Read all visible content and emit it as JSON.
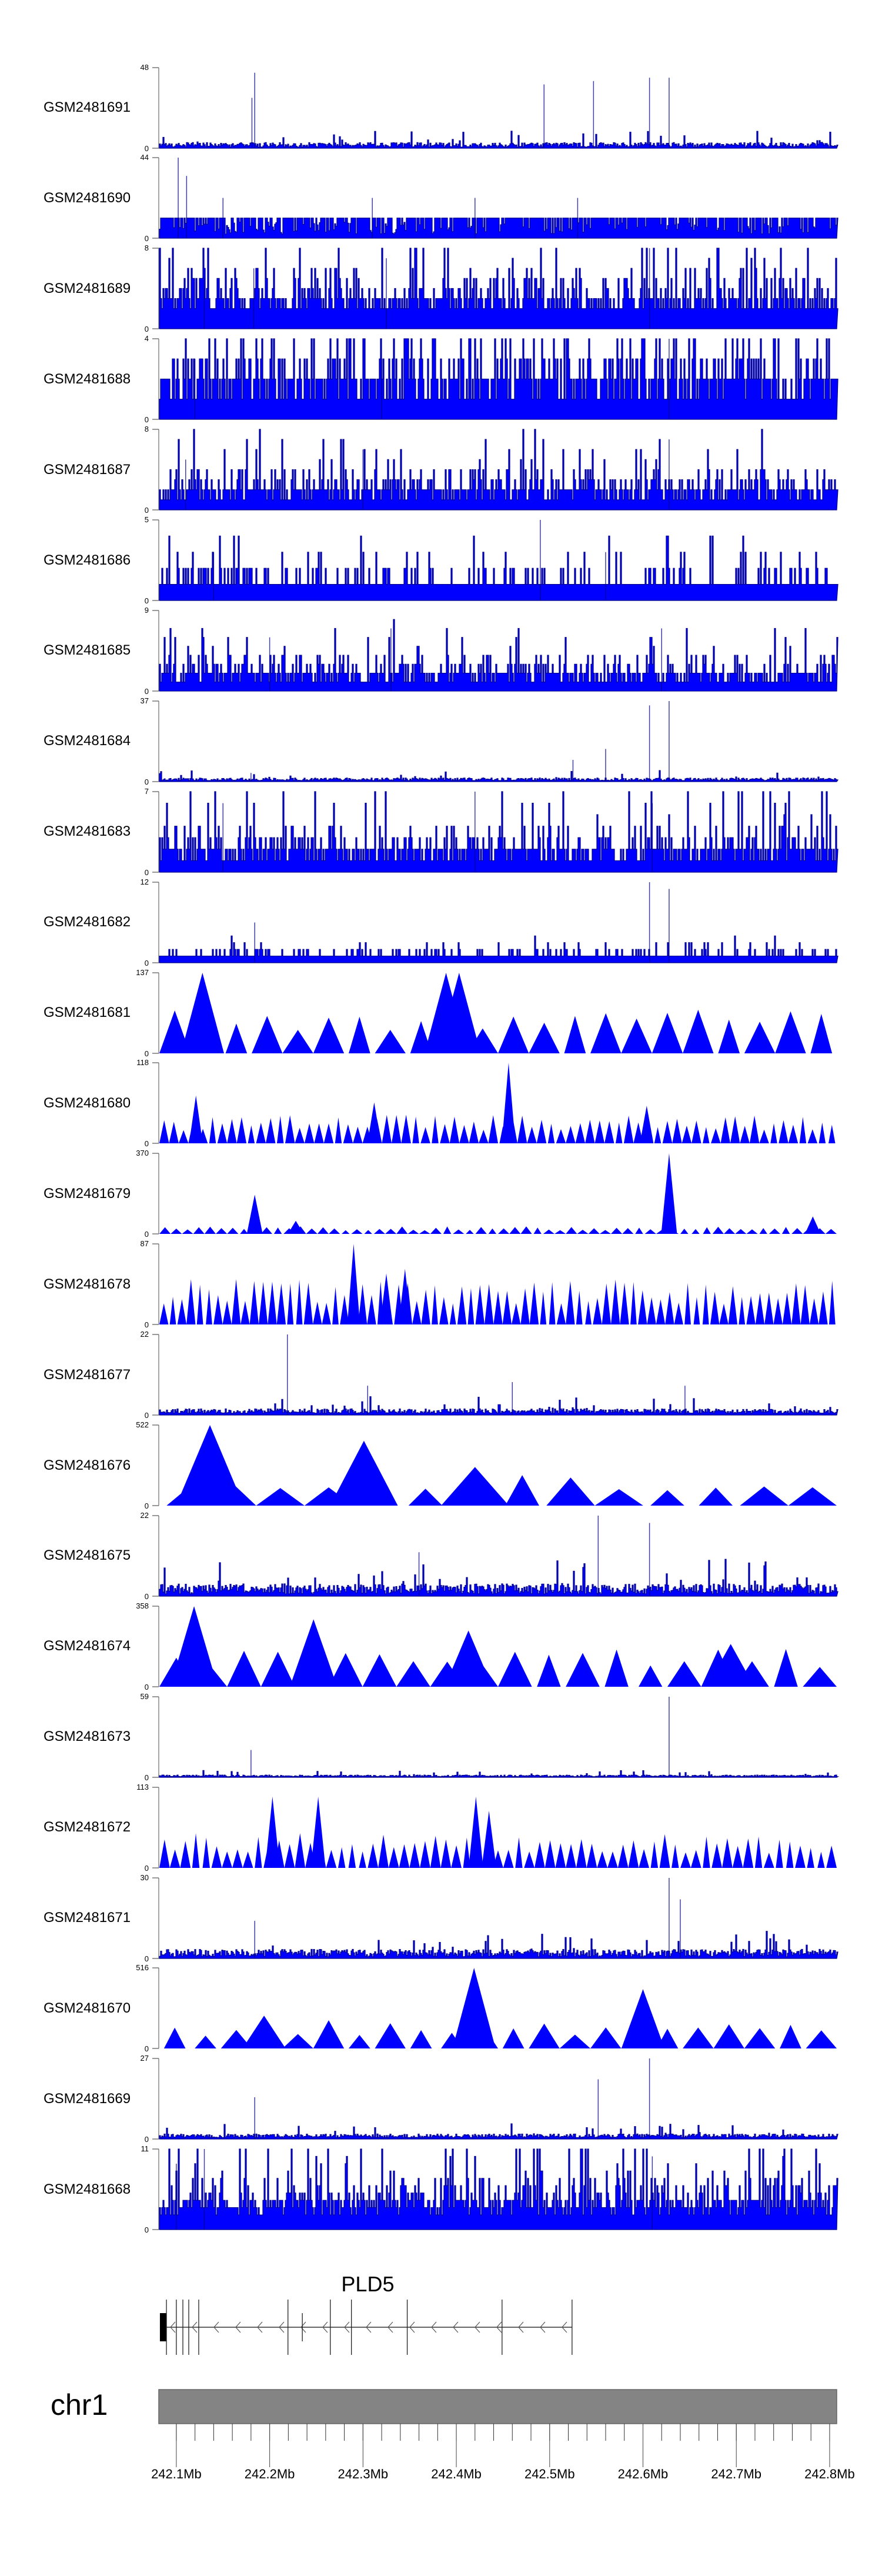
{
  "chart_data": {
    "type": "area",
    "title": "",
    "region": {
      "chromosome": "chr1",
      "start_mb": 242.0818,
      "end_mb": 242.8076
    },
    "colors": {
      "histogram": "#00008B",
      "histogram_fill": "#0000FF",
      "polygon": "#0000FF",
      "axis": "#888888",
      "ideogram": "#848484"
    },
    "tracks": [
      {
        "name": "GSM2481691",
        "ymax": 48,
        "style": "histogram",
        "typical": 2,
        "peaks": [
          [
            242.184,
            45
          ],
          [
            242.181,
            30
          ],
          [
            242.494,
            38
          ],
          [
            242.547,
            40
          ],
          [
            242.607,
            42
          ],
          [
            242.628,
            42
          ]
        ]
      },
      {
        "name": "GSM2481690",
        "ymax": 44,
        "style": "mixed",
        "typical": 11,
        "peaks": [
          [
            242.102,
            44
          ],
          [
            242.111,
            34
          ],
          [
            242.15,
            22
          ],
          [
            242.31,
            22
          ],
          [
            242.42,
            22
          ],
          [
            242.53,
            22
          ]
        ]
      },
      {
        "name": "GSM2481689",
        "ymax": 8,
        "style": "histogram",
        "typical": 3,
        "peaks": [
          [
            242.13,
            5
          ],
          [
            242.183,
            6
          ],
          [
            242.325,
            7
          ],
          [
            242.607,
            8
          ]
        ]
      },
      {
        "name": "GSM2481688",
        "ymax": 4,
        "style": "histogram",
        "typical": 2,
        "peaks": [
          [
            242.12,
            3
          ],
          [
            242.32,
            3
          ],
          [
            242.628,
            4
          ]
        ]
      },
      {
        "name": "GSM2481687",
        "ymax": 8,
        "style": "histogram",
        "typical": 2,
        "peaks": [
          [
            242.11,
            5
          ],
          [
            242.3,
            6
          ],
          [
            242.628,
            7
          ]
        ]
      },
      {
        "name": "GSM2481686",
        "ymax": 5,
        "style": "histogram",
        "typical": 1,
        "peaks": [
          [
            242.14,
            3
          ],
          [
            242.49,
            5
          ],
          [
            242.56,
            3
          ]
        ]
      },
      {
        "name": "GSM2481685",
        "ymax": 9,
        "style": "histogram",
        "typical": 2,
        "peaks": [
          [
            242.2,
            6
          ],
          [
            242.33,
            7
          ],
          [
            242.62,
            7
          ]
        ]
      },
      {
        "name": "GSM2481684",
        "ymax": 37,
        "style": "histogram",
        "typical": 1,
        "peaks": [
          [
            242.18,
            4
          ],
          [
            242.525,
            10
          ],
          [
            242.56,
            15
          ],
          [
            242.607,
            35
          ],
          [
            242.628,
            37
          ]
        ]
      },
      {
        "name": "GSM2481683",
        "ymax": 7,
        "style": "histogram",
        "typical": 2,
        "peaks": [
          [
            242.15,
            6
          ],
          [
            242.42,
            7
          ],
          [
            242.61,
            6
          ]
        ]
      },
      {
        "name": "GSM2481682",
        "ymax": 12,
        "style": "histogram",
        "typical": 1,
        "peaks": [
          [
            242.184,
            6
          ],
          [
            242.607,
            12
          ],
          [
            242.628,
            11
          ]
        ]
      },
      {
        "name": "GSM2481681",
        "ymax": 137,
        "style": "polygon",
        "typical": 55,
        "count": 22,
        "peaks": [
          [
            242.128,
            137
          ],
          [
            242.389,
            137
          ],
          [
            242.403,
            137
          ]
        ]
      },
      {
        "name": "GSM2481680",
        "ymax": 118,
        "style": "polygon",
        "typical": 30,
        "count": 70,
        "peaks": [
          [
            242.121,
            70
          ],
          [
            242.312,
            60
          ],
          [
            242.456,
            118
          ],
          [
            242.604,
            55
          ]
        ]
      },
      {
        "name": "GSM2481679",
        "ymax": 370,
        "style": "polygon",
        "typical": 25,
        "count": 60,
        "peaks": [
          [
            242.184,
            180
          ],
          [
            242.228,
            60
          ],
          [
            242.628,
            370
          ],
          [
            242.782,
            80
          ]
        ]
      },
      {
        "name": "GSM2481678",
        "ymax": 87,
        "style": "polygon",
        "typical": 35,
        "count": 75,
        "peaks": [
          [
            242.29,
            87
          ],
          [
            242.325,
            55
          ],
          [
            242.345,
            60
          ]
        ]
      },
      {
        "name": "GSM2481677",
        "ymax": 22,
        "style": "histogram",
        "typical": 1,
        "peaks": [
          [
            242.219,
            22
          ],
          [
            242.305,
            8
          ],
          [
            242.46,
            9
          ],
          [
            242.645,
            8
          ]
        ]
      },
      {
        "name": "GSM2481676",
        "ymax": 522,
        "style": "polygon",
        "typical": 150,
        "count": 14,
        "peaks": [
          [
            242.136,
            522
          ],
          [
            242.301,
            420
          ],
          [
            242.42,
            250
          ]
        ]
      },
      {
        "name": "GSM2481675",
        "ymax": 22,
        "style": "histogram",
        "typical": 2,
        "peaks": [
          [
            242.36,
            12
          ],
          [
            242.552,
            22
          ],
          [
            242.607,
            20
          ]
        ]
      },
      {
        "name": "GSM2481674",
        "ymax": 358,
        "style": "polygon",
        "typical": 120,
        "count": 20,
        "peaks": [
          [
            242.119,
            358
          ],
          [
            242.247,
            300
          ],
          [
            242.413,
            250
          ],
          [
            242.694,
            190
          ]
        ]
      },
      {
        "name": "GSM2481673",
        "ymax": 59,
        "style": "histogram",
        "typical": 1,
        "peaks": [
          [
            242.18,
            20
          ],
          [
            242.628,
            59
          ]
        ]
      },
      {
        "name": "GSM2481672",
        "ymax": 113,
        "style": "polygon",
        "typical": 35,
        "count": 65,
        "peaks": [
          [
            242.203,
            100
          ],
          [
            242.252,
            100
          ],
          [
            242.421,
            100
          ],
          [
            242.435,
            80
          ]
        ]
      },
      {
        "name": "GSM2481671",
        "ymax": 30,
        "style": "histogram",
        "typical": 2,
        "peaks": [
          [
            242.184,
            14
          ],
          [
            242.628,
            30
          ],
          [
            242.64,
            22
          ]
        ]
      },
      {
        "name": "GSM2481670",
        "ymax": 516,
        "style": "polygon",
        "typical": 130,
        "count": 22,
        "peaks": [
          [
            242.419,
            516
          ],
          [
            242.6,
            380
          ],
          [
            242.194,
            210
          ]
        ]
      },
      {
        "name": "GSM2481669",
        "ymax": 27,
        "style": "histogram",
        "typical": 1,
        "peaks": [
          [
            242.184,
            14
          ],
          [
            242.552,
            20
          ],
          [
            242.607,
            27
          ]
        ]
      },
      {
        "name": "GSM2481668",
        "ymax": 11,
        "style": "histogram",
        "typical": 4,
        "peaks": [
          [
            242.1,
            9
          ],
          [
            242.13,
            11
          ],
          [
            242.61,
            10
          ]
        ]
      }
    ],
    "gene": {
      "name": "PLD5",
      "strand": "-",
      "start_mb": 242.0824,
      "end_mb": 242.524,
      "utr_mb": [
        242.0824,
        242.0894
      ],
      "exons_mb": [
        242.0894,
        242.1,
        242.107,
        242.1133,
        242.124,
        242.2196,
        242.235,
        242.265,
        242.2876,
        242.3474,
        242.449,
        242.524
      ],
      "short_exons_mb": [
        242.235
      ]
    },
    "ideogram": {
      "chromosome": "chr1",
      "minor_tick_step_mb": 0.02,
      "major_ticks_mb": [
        242.1,
        242.2,
        242.3,
        242.4,
        242.5,
        242.6,
        242.7,
        242.8
      ],
      "major_tick_labels": [
        "242.1Mb",
        "242.2Mb",
        "242.3Mb",
        "242.4Mb",
        "242.5Mb",
        "242.6Mb",
        "242.7Mb",
        "242.8Mb"
      ]
    }
  }
}
